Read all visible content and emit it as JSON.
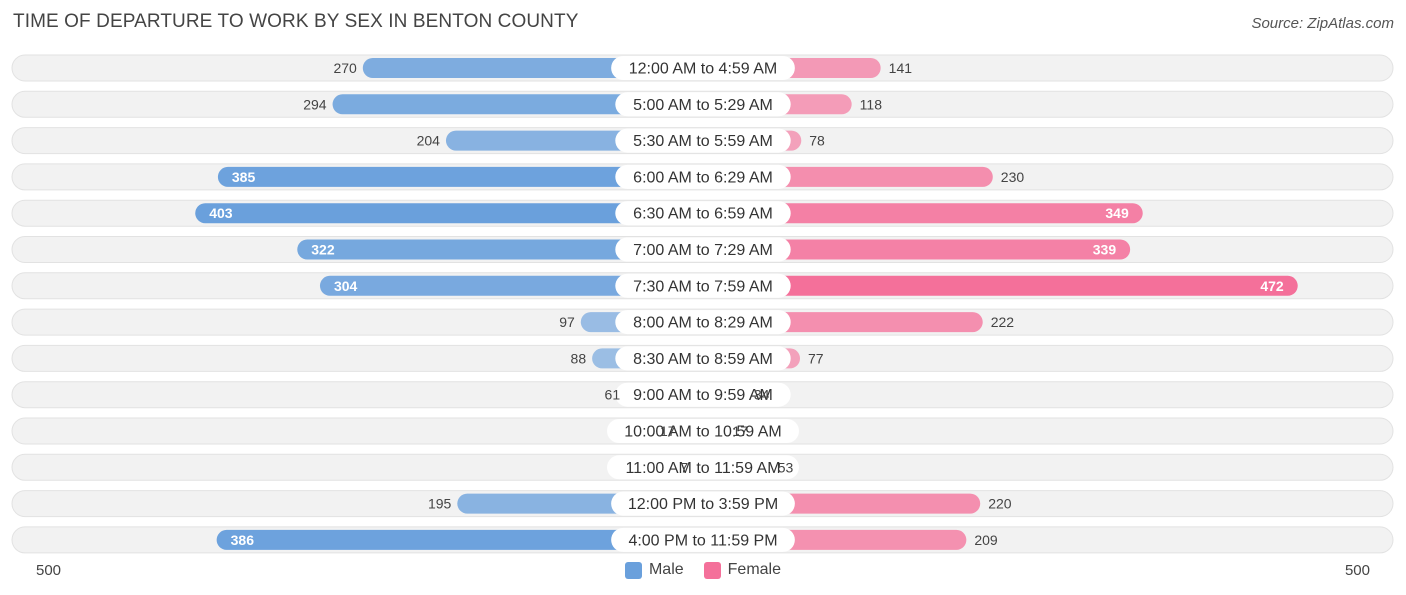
{
  "title": "TIME OF DEPARTURE TO WORK BY SEX IN BENTON COUNTY",
  "source": "Source: ZipAtlas.com",
  "axis": {
    "left_label": "500",
    "right_label": "500"
  },
  "legend": {
    "male_label": "Male",
    "female_label": "Female"
  },
  "colors": {
    "male": "#6aa0dc",
    "female": "#f4709a"
  },
  "chart_data": {
    "type": "bar",
    "orientation": "horizontal-diverging",
    "title": "TIME OF DEPARTURE TO WORK BY SEX IN BENTON COUNTY",
    "xlim": [
      -500,
      500
    ],
    "categories": [
      "12:00 AM to 4:59 AM",
      "5:00 AM to 5:29 AM",
      "5:30 AM to 5:59 AM",
      "6:00 AM to 6:29 AM",
      "6:30 AM to 6:59 AM",
      "7:00 AM to 7:29 AM",
      "7:30 AM to 7:59 AM",
      "8:00 AM to 8:29 AM",
      "8:30 AM to 8:59 AM",
      "9:00 AM to 9:59 AM",
      "10:00 AM to 10:59 AM",
      "11:00 AM to 11:59 AM",
      "12:00 PM to 3:59 PM",
      "4:00 PM to 11:59 PM"
    ],
    "series": [
      {
        "name": "Male",
        "values": [
          270,
          294,
          204,
          385,
          403,
          322,
          304,
          97,
          88,
          61,
          17,
          7,
          195,
          386
        ]
      },
      {
        "name": "Female",
        "values": [
          141,
          118,
          78,
          230,
          349,
          339,
          472,
          222,
          77,
          34,
          17,
          53,
          220,
          209
        ]
      }
    ]
  }
}
